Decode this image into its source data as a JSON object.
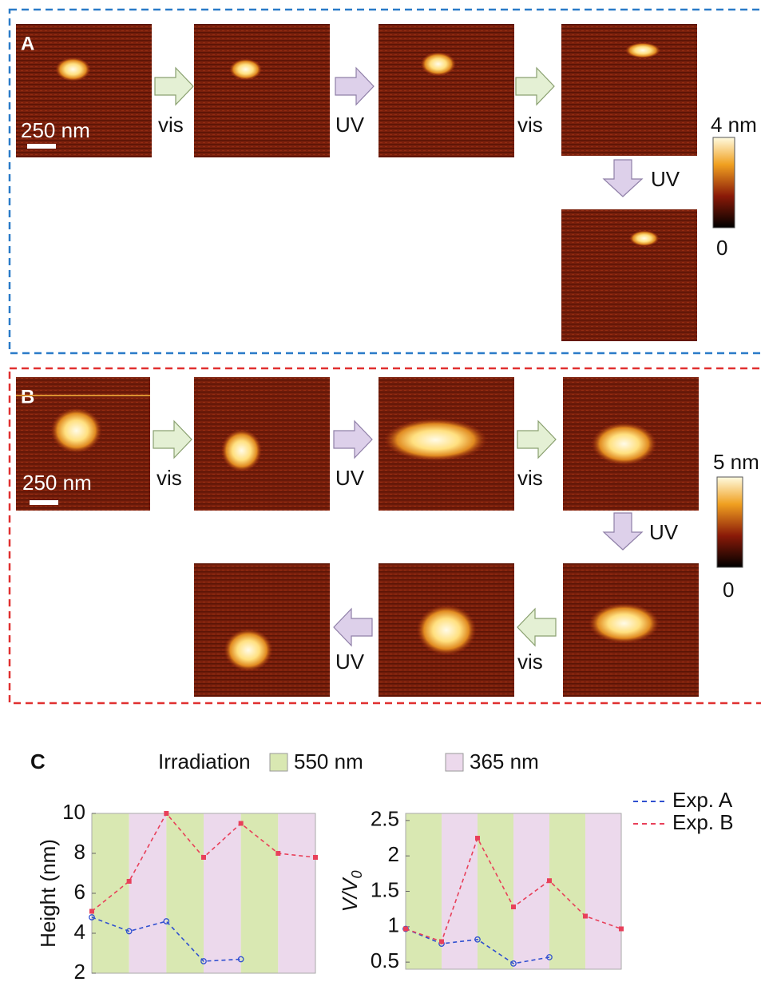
{
  "panel_a": {
    "label": "A",
    "scale_bar": "250 nm",
    "arrows": [
      "vis",
      "UV",
      "vis",
      "UV"
    ],
    "colorbar": {
      "max_label": "4 nm",
      "min_label": "0"
    }
  },
  "panel_b": {
    "label": "B",
    "scale_bar": "250 nm",
    "arrows": [
      "vis",
      "UV",
      "vis",
      "UV",
      "vis",
      "UV"
    ],
    "colorbar": {
      "max_label": "5 nm",
      "min_label": "0"
    }
  },
  "panel_c_label": "C",
  "irradiation": {
    "title": "Irradiation",
    "items": [
      {
        "label": "550 nm",
        "color": "#d9e8b2"
      },
      {
        "label": "365 nm",
        "color": "#ecd9ec"
      }
    ]
  },
  "chart_data": [
    {
      "type": "line",
      "y_label": "Height (nm)",
      "categories": [
        null,
        null,
        null,
        null,
        null,
        null,
        null
      ],
      "bands": [
        0,
        1,
        0,
        1,
        0,
        1
      ],
      "series": [
        {
          "name": "Exp. A",
          "color": "#3050d0",
          "marker": "circle",
          "values": [
            4.8,
            4.1,
            4.6,
            2.6,
            2.7,
            null,
            null
          ]
        },
        {
          "name": "Exp. B",
          "color": "#e8405a",
          "marker": "square",
          "values": [
            5.1,
            6.6,
            10,
            7.8,
            9.5,
            8.0,
            7.8
          ]
        }
      ],
      "ylim": [
        2,
        10
      ],
      "yticks": [
        2,
        4,
        6,
        8,
        10
      ]
    },
    {
      "type": "line",
      "y_label": {
        "main": "V/V",
        "sub": "0"
      },
      "categories": [
        null,
        null,
        null,
        null,
        null,
        null,
        null
      ],
      "bands": [
        0,
        1,
        0,
        1,
        0,
        1
      ],
      "series": [
        {
          "color": "#3050d0",
          "marker": "circle",
          "values": [
            0.97,
            0.76,
            0.82,
            0.48,
            0.57,
            null,
            null
          ]
        },
        {
          "color": "#e8405a",
          "marker": "square",
          "values": [
            0.97,
            0.79,
            2.25,
            1.28,
            1.65,
            1.15,
            0.97
          ]
        }
      ],
      "ylim": [
        0.4,
        2.6
      ],
      "yticks": [
        0.5,
        1,
        1.5,
        2,
        2.5
      ]
    }
  ]
}
